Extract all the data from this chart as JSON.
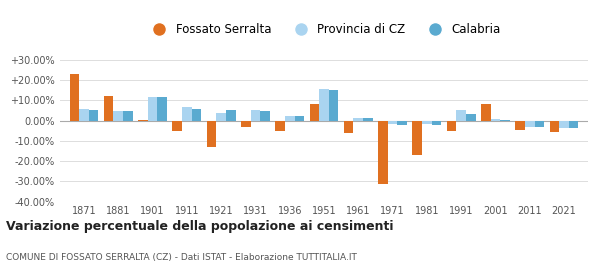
{
  "years": [
    1871,
    1881,
    1901,
    1911,
    1921,
    1931,
    1936,
    1951,
    1961,
    1971,
    1981,
    1991,
    2001,
    2011,
    2021
  ],
  "fossato": [
    23.0,
    12.0,
    0.5,
    -5.0,
    -13.0,
    -3.0,
    -5.0,
    8.5,
    -6.0,
    -31.5,
    -17.0,
    -5.0,
    8.5,
    -4.5,
    -5.5
  ],
  "provincia": [
    6.0,
    5.0,
    11.5,
    7.0,
    4.0,
    5.5,
    2.5,
    15.5,
    1.5,
    -1.5,
    -1.5,
    5.5,
    1.0,
    -3.0,
    -3.5
  ],
  "calabria": [
    5.5,
    5.0,
    11.5,
    6.0,
    5.5,
    5.0,
    2.5,
    15.0,
    1.5,
    -2.0,
    -2.0,
    3.5,
    0.5,
    -3.0,
    -3.5
  ],
  "fossato_color": "#e07020",
  "provincia_color": "#aad4f0",
  "calabria_color": "#5aaad0",
  "title": "Variazione percentuale della popolazione ai censimenti",
  "subtitle": "COMUNE DI FOSSATO SERRALTA (CZ) - Dati ISTAT - Elaborazione TUTTITALIA.IT",
  "ylim": [
    -40,
    32
  ],
  "yticks": [
    -40,
    -30,
    -20,
    -10,
    0,
    10,
    20,
    30
  ],
  "ytick_labels": [
    "-40.00%",
    "-30.00%",
    "-20.00%",
    "-10.00%",
    "0.00%",
    "+10.00%",
    "+20.00%",
    "+30.00%"
  ],
  "legend_labels": [
    "Fossato Serralta",
    "Provincia di CZ",
    "Calabria"
  ],
  "bar_width": 0.28,
  "background_color": "#ffffff",
  "grid_color": "#dddddd"
}
